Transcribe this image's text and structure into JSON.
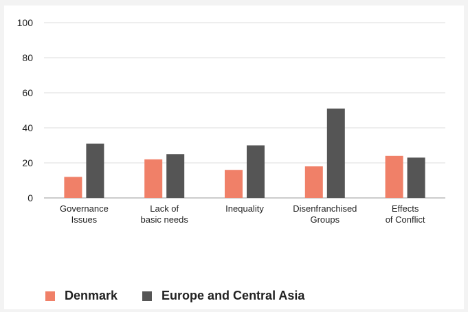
{
  "chart_data": {
    "type": "bar",
    "categories": [
      [
        "Governance",
        "Issues"
      ],
      [
        "Lack of",
        "basic needs"
      ],
      [
        "Inequality"
      ],
      [
        "Disenfranchised",
        "Groups"
      ],
      [
        "Effects",
        "of Conflict"
      ]
    ],
    "series": [
      {
        "name": "Denmark",
        "color": "#f08068",
        "values": [
          12,
          22,
          16,
          18,
          24
        ]
      },
      {
        "name": "Europe and Central Asia",
        "color": "#555555",
        "values": [
          31,
          25,
          30,
          51,
          23
        ]
      }
    ],
    "yticks": [
      0,
      20,
      40,
      60,
      80,
      100
    ],
    "ylim": [
      0,
      100
    ],
    "grid": true,
    "legend_position": "bottom-left",
    "title": "",
    "xlabel": "",
    "ylabel": ""
  }
}
